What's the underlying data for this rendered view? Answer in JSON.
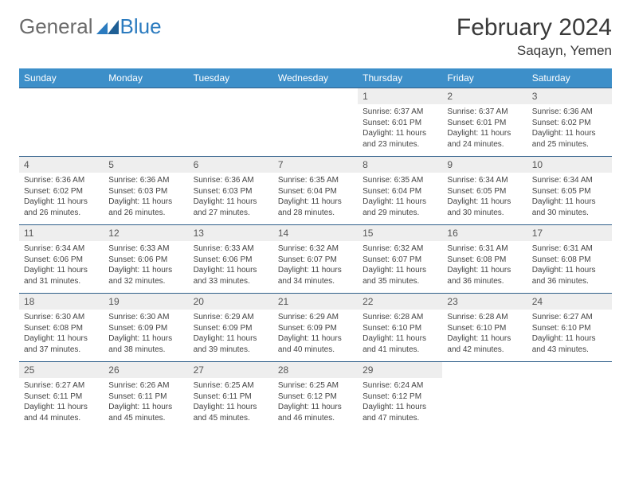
{
  "brand": {
    "part1": "General",
    "part2": "Blue"
  },
  "title": "February 2024",
  "location": "Saqayn, Yemen",
  "colors": {
    "header_bg": "#3d8fc9",
    "header_text": "#ffffff",
    "row_border": "#2f5f8a",
    "daynum_bg": "#eeeeee",
    "brand_gray": "#6b6b6b",
    "brand_blue": "#2b7bbf"
  },
  "weekdays": [
    "Sunday",
    "Monday",
    "Tuesday",
    "Wednesday",
    "Thursday",
    "Friday",
    "Saturday"
  ],
  "first_weekday_index": 4,
  "days": [
    {
      "n": 1,
      "sunrise": "6:37 AM",
      "sunset": "6:01 PM",
      "daylight": "11 hours and 23 minutes."
    },
    {
      "n": 2,
      "sunrise": "6:37 AM",
      "sunset": "6:01 PM",
      "daylight": "11 hours and 24 minutes."
    },
    {
      "n": 3,
      "sunrise": "6:36 AM",
      "sunset": "6:02 PM",
      "daylight": "11 hours and 25 minutes."
    },
    {
      "n": 4,
      "sunrise": "6:36 AM",
      "sunset": "6:02 PM",
      "daylight": "11 hours and 26 minutes."
    },
    {
      "n": 5,
      "sunrise": "6:36 AM",
      "sunset": "6:03 PM",
      "daylight": "11 hours and 26 minutes."
    },
    {
      "n": 6,
      "sunrise": "6:36 AM",
      "sunset": "6:03 PM",
      "daylight": "11 hours and 27 minutes."
    },
    {
      "n": 7,
      "sunrise": "6:35 AM",
      "sunset": "6:04 PM",
      "daylight": "11 hours and 28 minutes."
    },
    {
      "n": 8,
      "sunrise": "6:35 AM",
      "sunset": "6:04 PM",
      "daylight": "11 hours and 29 minutes."
    },
    {
      "n": 9,
      "sunrise": "6:34 AM",
      "sunset": "6:05 PM",
      "daylight": "11 hours and 30 minutes."
    },
    {
      "n": 10,
      "sunrise": "6:34 AM",
      "sunset": "6:05 PM",
      "daylight": "11 hours and 30 minutes."
    },
    {
      "n": 11,
      "sunrise": "6:34 AM",
      "sunset": "6:06 PM",
      "daylight": "11 hours and 31 minutes."
    },
    {
      "n": 12,
      "sunrise": "6:33 AM",
      "sunset": "6:06 PM",
      "daylight": "11 hours and 32 minutes."
    },
    {
      "n": 13,
      "sunrise": "6:33 AM",
      "sunset": "6:06 PM",
      "daylight": "11 hours and 33 minutes."
    },
    {
      "n": 14,
      "sunrise": "6:32 AM",
      "sunset": "6:07 PM",
      "daylight": "11 hours and 34 minutes."
    },
    {
      "n": 15,
      "sunrise": "6:32 AM",
      "sunset": "6:07 PM",
      "daylight": "11 hours and 35 minutes."
    },
    {
      "n": 16,
      "sunrise": "6:31 AM",
      "sunset": "6:08 PM",
      "daylight": "11 hours and 36 minutes."
    },
    {
      "n": 17,
      "sunrise": "6:31 AM",
      "sunset": "6:08 PM",
      "daylight": "11 hours and 36 minutes."
    },
    {
      "n": 18,
      "sunrise": "6:30 AM",
      "sunset": "6:08 PM",
      "daylight": "11 hours and 37 minutes."
    },
    {
      "n": 19,
      "sunrise": "6:30 AM",
      "sunset": "6:09 PM",
      "daylight": "11 hours and 38 minutes."
    },
    {
      "n": 20,
      "sunrise": "6:29 AM",
      "sunset": "6:09 PM",
      "daylight": "11 hours and 39 minutes."
    },
    {
      "n": 21,
      "sunrise": "6:29 AM",
      "sunset": "6:09 PM",
      "daylight": "11 hours and 40 minutes."
    },
    {
      "n": 22,
      "sunrise": "6:28 AM",
      "sunset": "6:10 PM",
      "daylight": "11 hours and 41 minutes."
    },
    {
      "n": 23,
      "sunrise": "6:28 AM",
      "sunset": "6:10 PM",
      "daylight": "11 hours and 42 minutes."
    },
    {
      "n": 24,
      "sunrise": "6:27 AM",
      "sunset": "6:10 PM",
      "daylight": "11 hours and 43 minutes."
    },
    {
      "n": 25,
      "sunrise": "6:27 AM",
      "sunset": "6:11 PM",
      "daylight": "11 hours and 44 minutes."
    },
    {
      "n": 26,
      "sunrise": "6:26 AM",
      "sunset": "6:11 PM",
      "daylight": "11 hours and 45 minutes."
    },
    {
      "n": 27,
      "sunrise": "6:25 AM",
      "sunset": "6:11 PM",
      "daylight": "11 hours and 45 minutes."
    },
    {
      "n": 28,
      "sunrise": "6:25 AM",
      "sunset": "6:12 PM",
      "daylight": "11 hours and 46 minutes."
    },
    {
      "n": 29,
      "sunrise": "6:24 AM",
      "sunset": "6:12 PM",
      "daylight": "11 hours and 47 minutes."
    }
  ],
  "labels": {
    "sunrise": "Sunrise:",
    "sunset": "Sunset:",
    "daylight": "Daylight:"
  }
}
